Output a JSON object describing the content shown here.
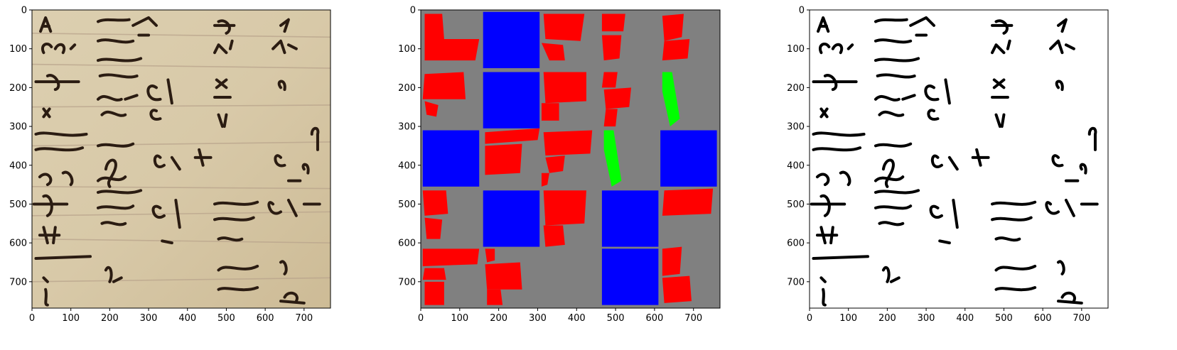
{
  "panels": [
    {
      "name": "manuscript-photo",
      "kind": "photo"
    },
    {
      "name": "segmentation-mask",
      "kind": "mask"
    },
    {
      "name": "binarized-image",
      "kind": "binary"
    }
  ],
  "axis": {
    "xlim": [
      0,
      768
    ],
    "ylim": [
      768,
      0
    ],
    "xticks": [
      0,
      100,
      200,
      300,
      400,
      500,
      600,
      700
    ],
    "yticks": [
      0,
      100,
      200,
      300,
      400,
      500,
      600,
      700
    ]
  },
  "colors": {
    "background_gray": "#808080",
    "red": "#ff0000",
    "blue": "#0000ff",
    "green": "#00ff00",
    "parchment": "#d8c9a8",
    "ink": "#2b1c12"
  },
  "mask_regions": {
    "blue": [
      [
        160,
        5,
        305,
        150
      ],
      [
        160,
        160,
        305,
        305
      ],
      [
        5,
        310,
        150,
        455
      ],
      [
        615,
        310,
        760,
        455
      ],
      [
        160,
        465,
        305,
        610
      ],
      [
        465,
        465,
        610,
        610
      ],
      [
        465,
        615,
        610,
        760
      ]
    ],
    "green": [
      [
        [
          620,
          160
        ],
        [
          645,
          160
        ],
        [
          665,
          280
        ],
        [
          640,
          300
        ],
        [
          620,
          210
        ]
      ],
      [
        [
          470,
          310
        ],
        [
          495,
          310
        ],
        [
          515,
          440
        ],
        [
          490,
          455
        ],
        [
          470,
          360
        ]
      ]
    ],
    "red": [
      [
        [
          10,
          10
        ],
        [
          55,
          10
        ],
        [
          60,
          75
        ],
        [
          150,
          75
        ],
        [
          140,
          130
        ],
        [
          10,
          130
        ]
      ],
      [
        [
          10,
          165
        ],
        [
          110,
          160
        ],
        [
          115,
          230
        ],
        [
          5,
          230
        ]
      ],
      [
        [
          10,
          235
        ],
        [
          45,
          245
        ],
        [
          40,
          275
        ],
        [
          15,
          270
        ]
      ],
      [
        [
          315,
          10
        ],
        [
          420,
          10
        ],
        [
          410,
          80
        ],
        [
          320,
          75
        ]
      ],
      [
        [
          310,
          85
        ],
        [
          365,
          90
        ],
        [
          370,
          130
        ],
        [
          330,
          130
        ]
      ],
      [
        [
          315,
          160
        ],
        [
          425,
          160
        ],
        [
          425,
          235
        ],
        [
          320,
          240
        ]
      ],
      [
        [
          310,
          240
        ],
        [
          355,
          240
        ],
        [
          355,
          285
        ],
        [
          310,
          285
        ]
      ],
      [
        [
          465,
          10
        ],
        [
          525,
          10
        ],
        [
          520,
          55
        ],
        [
          465,
          55
        ]
      ],
      [
        [
          465,
          65
        ],
        [
          515,
          65
        ],
        [
          510,
          125
        ],
        [
          470,
          130
        ]
      ],
      [
        [
          470,
          160
        ],
        [
          505,
          160
        ],
        [
          500,
          200
        ],
        [
          465,
          200
        ]
      ],
      [
        [
          470,
          205
        ],
        [
          540,
          200
        ],
        [
          535,
          250
        ],
        [
          475,
          255
        ]
      ],
      [
        [
          475,
          255
        ],
        [
          505,
          255
        ],
        [
          500,
          300
        ],
        [
          470,
          300
        ]
      ],
      [
        [
          620,
          15
        ],
        [
          675,
          10
        ],
        [
          670,
          70
        ],
        [
          625,
          80
        ]
      ],
      [
        [
          625,
          80
        ],
        [
          690,
          75
        ],
        [
          685,
          125
        ],
        [
          620,
          130
        ]
      ],
      [
        [
          165,
          315
        ],
        [
          305,
          305
        ],
        [
          300,
          335
        ],
        [
          165,
          345
        ]
      ],
      [
        [
          165,
          350
        ],
        [
          260,
          345
        ],
        [
          255,
          420
        ],
        [
          165,
          425
        ]
      ],
      [
        [
          315,
          315
        ],
        [
          440,
          310
        ],
        [
          435,
          370
        ],
        [
          320,
          375
        ]
      ],
      [
        [
          320,
          380
        ],
        [
          370,
          375
        ],
        [
          365,
          415
        ],
        [
          330,
          420
        ]
      ],
      [
        [
          310,
          420
        ],
        [
          330,
          420
        ],
        [
          325,
          450
        ],
        [
          310,
          455
        ]
      ],
      [
        [
          5,
          465
        ],
        [
          65,
          465
        ],
        [
          70,
          525
        ],
        [
          10,
          530
        ]
      ],
      [
        [
          10,
          535
        ],
        [
          55,
          540
        ],
        [
          50,
          590
        ],
        [
          15,
          590
        ]
      ],
      [
        [
          315,
          465
        ],
        [
          425,
          465
        ],
        [
          420,
          550
        ],
        [
          320,
          555
        ]
      ],
      [
        [
          315,
          555
        ],
        [
          365,
          555
        ],
        [
          370,
          605
        ],
        [
          320,
          610
        ]
      ],
      [
        [
          625,
          465
        ],
        [
          750,
          460
        ],
        [
          745,
          525
        ],
        [
          620,
          530
        ]
      ],
      [
        [
          5,
          615
        ],
        [
          150,
          615
        ],
        [
          145,
          655
        ],
        [
          5,
          660
        ]
      ],
      [
        [
          10,
          665
        ],
        [
          60,
          665
        ],
        [
          65,
          695
        ],
        [
          5,
          695
        ]
      ],
      [
        [
          10,
          700
        ],
        [
          60,
          700
        ],
        [
          60,
          760
        ],
        [
          10,
          760
        ]
      ],
      [
        [
          165,
          615
        ],
        [
          190,
          615
        ],
        [
          190,
          645
        ],
        [
          170,
          650
        ]
      ],
      [
        [
          165,
          655
        ],
        [
          255,
          650
        ],
        [
          260,
          720
        ],
        [
          170,
          720
        ]
      ],
      [
        [
          170,
          720
        ],
        [
          205,
          720
        ],
        [
          210,
          760
        ],
        [
          170,
          760
        ]
      ],
      [
        [
          620,
          615
        ],
        [
          670,
          610
        ],
        [
          665,
          680
        ],
        [
          620,
          685
        ]
      ],
      [
        [
          620,
          690
        ],
        [
          690,
          685
        ],
        [
          695,
          750
        ],
        [
          625,
          755
        ]
      ]
    ]
  }
}
